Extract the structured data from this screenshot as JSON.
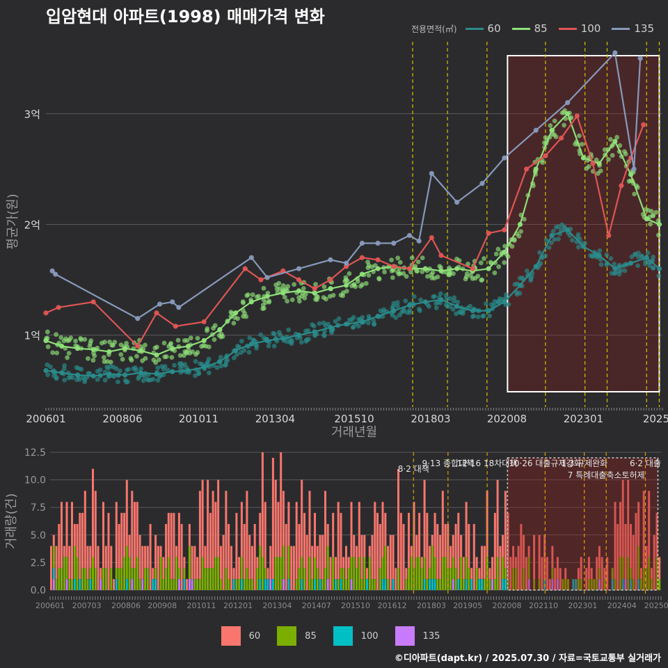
{
  "title": "입암현대 아파트(1998) 매매가격 변화",
  "legend": {
    "title": "전용면적(㎡)",
    "items": [
      {
        "label": "60",
        "color": "#2a8c8c"
      },
      {
        "label": "85",
        "color": "#8fe07a"
      },
      {
        "label": "100",
        "color": "#e05555"
      },
      {
        "label": "135",
        "color": "#8899bb"
      }
    ]
  },
  "bar_legend": [
    {
      "label": "60",
      "color": "#f8766d"
    },
    {
      "label": "85",
      "color": "#7cae00"
    },
    {
      "label": "100",
      "color": "#00bfc4"
    },
    {
      "label": "135",
      "color": "#c77cff"
    }
  ],
  "footer": "©디아파트(dapt.kr) / 2025.07.30 / 자료=국토교통부 실거래가",
  "chart_data": [
    {
      "type": "line",
      "xlabel": "거래년월",
      "ylabel": "평균가(원)",
      "x_ticks": [
        "200601",
        "200806",
        "201011",
        "201304",
        "201510",
        "201803",
        "202008",
        "202301",
        "2025"
      ],
      "y_ticks": [
        "1억",
        "2억",
        "3억"
      ],
      "ylim": [
        0.35,
        3.7
      ],
      "xlim": [
        2006.0,
        2025.5
      ],
      "events": [
        2017.6,
        2018.7,
        2019.95,
        2021.8,
        2023.05,
        2023.75,
        2025.0,
        2025.4
      ],
      "highlight": {
        "from": 2020.6,
        "to": 2025.4
      },
      "series": [
        {
          "name": "60",
          "x": [
            2006.0,
            2006.5,
            2007.0,
            2007.5,
            2008.0,
            2008.5,
            2009.0,
            2009.5,
            2010.0,
            2010.5,
            2011.0,
            2011.5,
            2012.0,
            2012.5,
            2013.0,
            2013.5,
            2014.0,
            2014.5,
            2015.0,
            2015.5,
            2016.0,
            2016.5,
            2017.0,
            2017.5,
            2018.0,
            2018.5,
            2019.0,
            2019.5,
            2020.0,
            2020.5,
            2021.0,
            2021.5,
            2022.0,
            2022.5,
            2023.0,
            2023.5,
            2024.0,
            2024.5,
            2025.0,
            2025.4
          ],
          "y": [
            0.68,
            0.66,
            0.64,
            0.63,
            0.65,
            0.64,
            0.66,
            0.65,
            0.67,
            0.68,
            0.71,
            0.76,
            0.86,
            0.92,
            0.95,
            0.97,
            1.0,
            1.03,
            1.07,
            1.1,
            1.12,
            1.17,
            1.22,
            1.27,
            1.3,
            1.32,
            1.26,
            1.22,
            1.22,
            1.3,
            1.45,
            1.62,
            1.9,
            1.95,
            1.8,
            1.72,
            1.6,
            1.65,
            1.7,
            1.6
          ]
        },
        {
          "name": "85",
          "x": [
            2006.0,
            2006.5,
            2007.0,
            2007.5,
            2008.0,
            2008.5,
            2009.0,
            2009.5,
            2010.0,
            2010.5,
            2011.0,
            2011.5,
            2012.0,
            2012.5,
            2013.0,
            2013.5,
            2014.0,
            2014.5,
            2015.0,
            2015.5,
            2016.0,
            2016.5,
            2017.0,
            2017.5,
            2018.0,
            2018.5,
            2019.0,
            2019.5,
            2020.0,
            2020.5,
            2021.0,
            2021.5,
            2022.0,
            2022.5,
            2023.0,
            2023.5,
            2024.0,
            2024.5,
            2025.0,
            2025.4
          ],
          "y": [
            0.95,
            0.9,
            0.88,
            0.87,
            0.85,
            0.88,
            0.86,
            0.82,
            0.88,
            0.9,
            0.95,
            1.05,
            1.2,
            1.3,
            1.35,
            1.38,
            1.4,
            1.38,
            1.42,
            1.45,
            1.55,
            1.6,
            1.62,
            1.6,
            1.6,
            1.58,
            1.6,
            1.58,
            1.6,
            1.75,
            2.0,
            2.5,
            2.85,
            3.0,
            2.6,
            2.55,
            2.75,
            2.45,
            2.05,
            2.0
          ]
        },
        {
          "name": "100",
          "x": [
            2006.0,
            2006.4,
            2007.5,
            2008.9,
            2009.5,
            2010.1,
            2011.0,
            2012.3,
            2012.8,
            2013.5,
            2014.0,
            2014.5,
            2015.0,
            2015.5,
            2016.0,
            2016.5,
            2017.0,
            2017.5,
            2018.2,
            2018.5,
            2019.5,
            2020.0,
            2020.5,
            2021.2,
            2021.8,
            2022.3,
            2022.8,
            2023.3,
            2023.8,
            2024.2,
            2024.5,
            2024.9
          ],
          "y": [
            1.2,
            1.25,
            1.3,
            0.9,
            1.2,
            1.08,
            1.12,
            1.6,
            1.5,
            1.58,
            1.5,
            1.42,
            1.5,
            1.62,
            1.7,
            1.68,
            1.62,
            1.6,
            1.88,
            1.72,
            1.6,
            1.92,
            1.95,
            2.5,
            2.62,
            2.78,
            2.98,
            2.55,
            1.9,
            2.35,
            2.6,
            2.9
          ]
        },
        {
          "name": "135",
          "x": [
            2006.2,
            2006.3,
            2008.9,
            2009.6,
            2010.0,
            2010.2,
            2012.5,
            2013.0,
            2014.0,
            2015.0,
            2015.5,
            2016.0,
            2016.5,
            2017.0,
            2017.5,
            2017.8,
            2018.2,
            2019.0,
            2019.8,
            2020.5,
            2021.5,
            2022.5,
            2024.0,
            2024.6,
            2024.8
          ],
          "y": [
            1.58,
            1.55,
            1.15,
            1.28,
            1.3,
            1.25,
            1.7,
            1.52,
            1.6,
            1.68,
            1.65,
            1.83,
            1.83,
            1.83,
            1.9,
            1.85,
            2.46,
            2.2,
            2.37,
            2.6,
            2.85,
            3.1,
            3.55,
            2.5,
            3.5
          ]
        }
      ]
    },
    {
      "type": "bar",
      "xlabel": "",
      "ylabel": "거래량(건)",
      "x_ticks": [
        "200601",
        "200703",
        "200806",
        "200908",
        "201011",
        "201201",
        "201304",
        "201407",
        "201510",
        "201612",
        "201803",
        "201905",
        "202008",
        "202110",
        "202301",
        "202404",
        "20250"
      ],
      "y_ticks": [
        "0.0",
        "2.5",
        "5.0",
        "7.5",
        "10.0",
        "12.5"
      ],
      "ylim": [
        0,
        12.5
      ],
      "events": [
        {
          "x": 2017.6,
          "label": "8·2 대책"
        },
        {
          "x": 2018.7,
          "label": "9·13 종합대책"
        },
        {
          "x": 2019.95,
          "label": "12·16 18차대책"
        },
        {
          "x": 2021.8,
          "label": "10·26 대출규제강화"
        },
        {
          "x": 2023.05,
          "label": "1·3 규제완화"
        },
        {
          "x": 2023.75,
          "label": "7 특례대출축소토허제"
        },
        {
          "x": 2025.0,
          "label": "6·2 대출"
        }
      ],
      "highlight": {
        "from": 2020.6,
        "to": 2025.4
      },
      "series_names": [
        "60",
        "85",
        "100",
        "135"
      ]
    }
  ]
}
